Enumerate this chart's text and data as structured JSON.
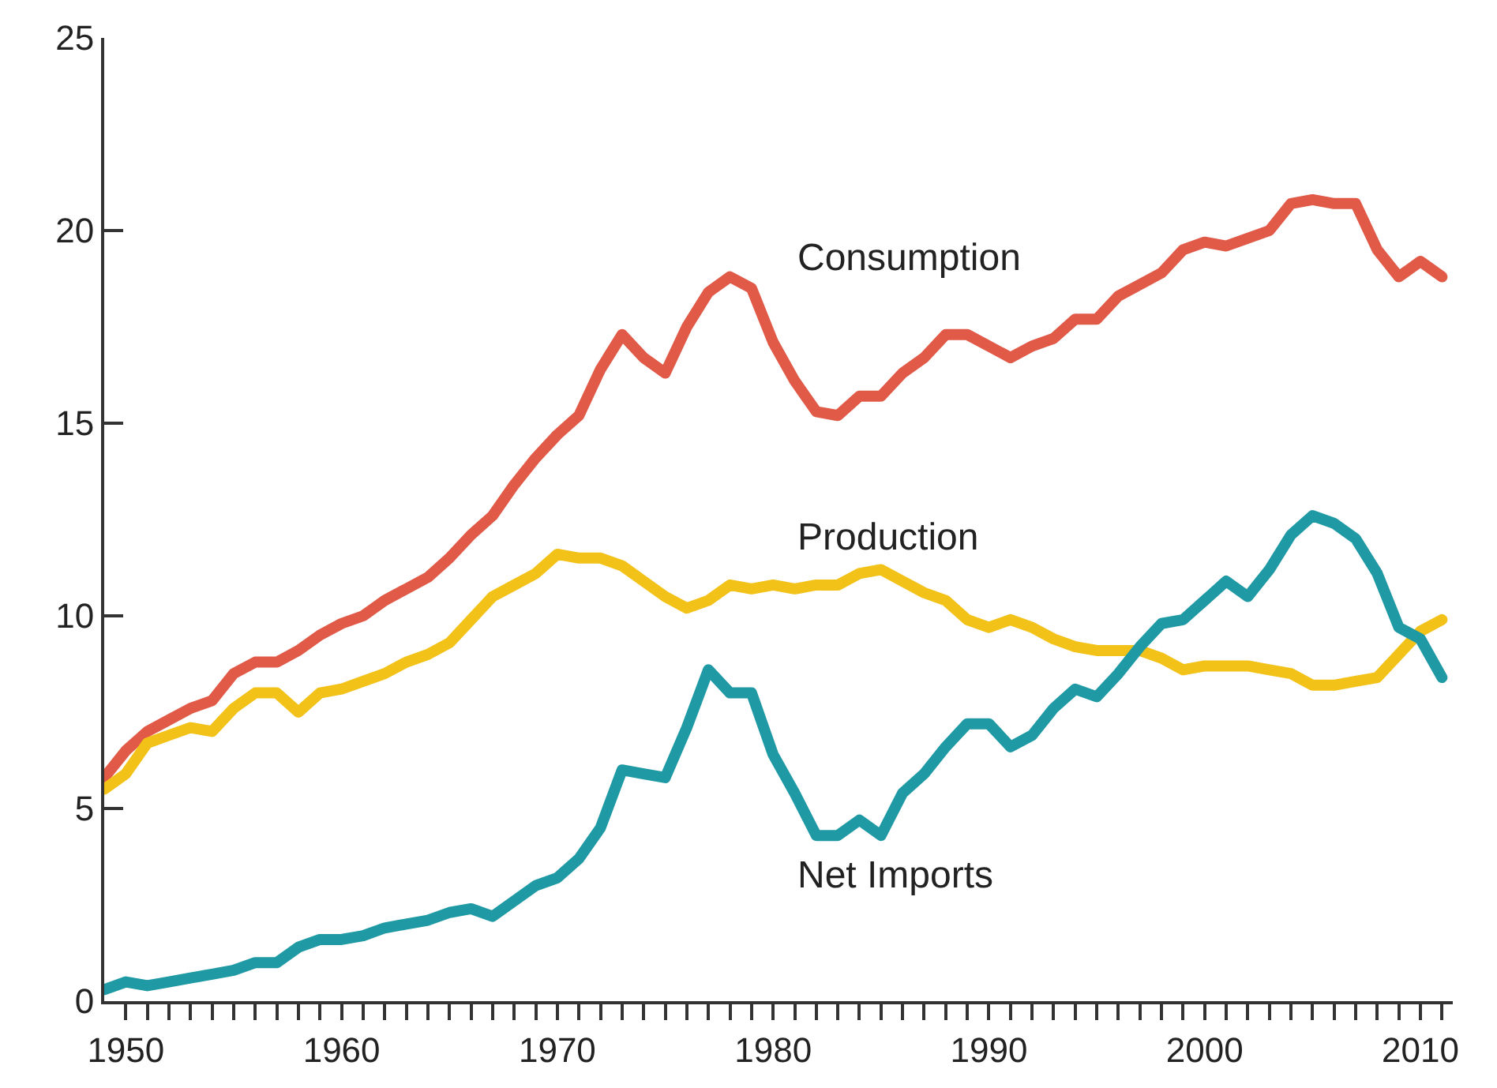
{
  "chart_data": {
    "type": "line",
    "x": [
      1949,
      1950,
      1951,
      1952,
      1953,
      1954,
      1955,
      1956,
      1957,
      1958,
      1959,
      1960,
      1961,
      1962,
      1963,
      1964,
      1965,
      1966,
      1967,
      1968,
      1969,
      1970,
      1971,
      1972,
      1973,
      1974,
      1975,
      1976,
      1977,
      1978,
      1979,
      1980,
      1981,
      1982,
      1983,
      1984,
      1985,
      1986,
      1987,
      1988,
      1989,
      1990,
      1991,
      1992,
      1993,
      1994,
      1995,
      1996,
      1997,
      1998,
      1999,
      2000,
      2001,
      2002,
      2003,
      2004,
      2005,
      2006,
      2007,
      2008,
      2009,
      2010,
      2011
    ],
    "series": [
      {
        "name": "Consumption",
        "color": "#e05a47",
        "values": [
          5.8,
          6.5,
          7.0,
          7.3,
          7.6,
          7.8,
          8.5,
          8.8,
          8.8,
          9.1,
          9.5,
          9.8,
          10.0,
          10.4,
          10.7,
          11.0,
          11.5,
          12.1,
          12.6,
          13.4,
          14.1,
          14.7,
          15.2,
          16.4,
          17.3,
          16.7,
          16.3,
          17.5,
          18.4,
          18.8,
          18.5,
          17.1,
          16.1,
          15.3,
          15.2,
          15.7,
          15.7,
          16.3,
          16.7,
          17.3,
          17.3,
          17.0,
          16.7,
          17.0,
          17.2,
          17.7,
          17.7,
          18.3,
          18.6,
          18.9,
          19.5,
          19.7,
          19.6,
          19.8,
          20.0,
          20.7,
          20.8,
          20.7,
          20.7,
          19.5,
          18.8,
          19.2,
          18.8
        ]
      },
      {
        "name": "Production",
        "color": "#f2c218",
        "values": [
          5.5,
          5.9,
          6.7,
          6.9,
          7.1,
          7.0,
          7.6,
          8.0,
          8.0,
          7.5,
          8.0,
          8.1,
          8.3,
          8.5,
          8.8,
          9.0,
          9.3,
          9.9,
          10.5,
          10.8,
          11.1,
          11.6,
          11.5,
          11.5,
          11.3,
          10.9,
          10.5,
          10.2,
          10.4,
          10.8,
          10.7,
          10.8,
          10.7,
          10.8,
          10.8,
          11.1,
          11.2,
          10.9,
          10.6,
          10.4,
          9.9,
          9.7,
          9.9,
          9.7,
          9.4,
          9.2,
          9.1,
          9.1,
          9.1,
          8.9,
          8.6,
          8.7,
          8.7,
          8.7,
          8.6,
          8.5,
          8.2,
          8.2,
          8.3,
          8.4,
          9.0,
          9.6,
          9.9
        ]
      },
      {
        "name": "Net Imports",
        "color": "#1f9aa5",
        "values": [
          0.3,
          0.5,
          0.4,
          0.5,
          0.6,
          0.7,
          0.8,
          1.0,
          1.0,
          1.4,
          1.6,
          1.6,
          1.7,
          1.9,
          2.0,
          2.1,
          2.3,
          2.4,
          2.2,
          2.6,
          3.0,
          3.2,
          3.7,
          4.5,
          6.0,
          5.9,
          5.8,
          7.1,
          8.6,
          8.0,
          8.0,
          6.4,
          5.4,
          4.3,
          4.3,
          4.7,
          4.3,
          5.4,
          5.9,
          6.6,
          7.2,
          7.2,
          6.6,
          6.9,
          7.6,
          8.1,
          7.9,
          8.5,
          9.2,
          9.8,
          9.9,
          10.4,
          10.9,
          10.5,
          11.2,
          12.1,
          12.6,
          12.4,
          12.0,
          11.1,
          9.7,
          9.4,
          8.4
        ]
      }
    ],
    "xlim": [
      1949,
      2011.5
    ],
    "xticks": [
      1950,
      {
        "value": 1951,
        "label": null
      },
      {
        "value": 1952,
        "label": null
      },
      {
        "value": 1953,
        "label": null
      },
      {
        "value": 1954,
        "label": null
      },
      {
        "value": 1955,
        "label": null
      },
      {
        "value": 1956,
        "label": null
      },
      {
        "value": 1957,
        "label": null
      },
      {
        "value": 1958,
        "label": null
      },
      {
        "value": 1959,
        "label": null
      },
      1960,
      {
        "value": 1961,
        "label": null
      },
      {
        "value": 1962,
        "label": null
      },
      {
        "value": 1963,
        "label": null
      },
      {
        "value": 1964,
        "label": null
      },
      {
        "value": 1965,
        "label": null
      },
      {
        "value": 1966,
        "label": null
      },
      {
        "value": 1967,
        "label": null
      },
      {
        "value": 1968,
        "label": null
      },
      {
        "value": 1969,
        "label": null
      },
      1970,
      {
        "value": 1971,
        "label": null
      },
      {
        "value": 1972,
        "label": null
      },
      {
        "value": 1973,
        "label": null
      },
      {
        "value": 1974,
        "label": null
      },
      {
        "value": 1975,
        "label": null
      },
      {
        "value": 1976,
        "label": null
      },
      {
        "value": 1977,
        "label": null
      },
      {
        "value": 1978,
        "label": null
      },
      {
        "value": 1979,
        "label": null
      },
      1980,
      {
        "value": 1981,
        "label": null
      },
      {
        "value": 1982,
        "label": null
      },
      {
        "value": 1983,
        "label": null
      },
      {
        "value": 1984,
        "label": null
      },
      {
        "value": 1985,
        "label": null
      },
      {
        "value": 1986,
        "label": null
      },
      {
        "value": 1987,
        "label": null
      },
      {
        "value": 1988,
        "label": null
      },
      {
        "value": 1989,
        "label": null
      },
      1990,
      {
        "value": 1991,
        "label": null
      },
      {
        "value": 1992,
        "label": null
      },
      {
        "value": 1993,
        "label": null
      },
      {
        "value": 1994,
        "label": null
      },
      {
        "value": 1995,
        "label": null
      },
      {
        "value": 1996,
        "label": null
      },
      {
        "value": 1997,
        "label": null
      },
      {
        "value": 1998,
        "label": null
      },
      {
        "value": 1999,
        "label": null
      },
      2000,
      {
        "value": 2001,
        "label": null
      },
      {
        "value": 2002,
        "label": null
      },
      {
        "value": 2003,
        "label": null
      },
      {
        "value": 2004,
        "label": null
      },
      {
        "value": 2005,
        "label": null
      },
      {
        "value": 2006,
        "label": null
      },
      {
        "value": 2007,
        "label": null
      },
      {
        "value": 2008,
        "label": null
      },
      {
        "value": 2009,
        "label": null
      },
      2010,
      {
        "value": 2011,
        "label": null
      }
    ],
    "ylim": [
      0,
      25
    ],
    "yticks": [
      0,
      5,
      10,
      15,
      20,
      25
    ],
    "legend": false,
    "marker": "none",
    "line_style": "solid"
  }
}
